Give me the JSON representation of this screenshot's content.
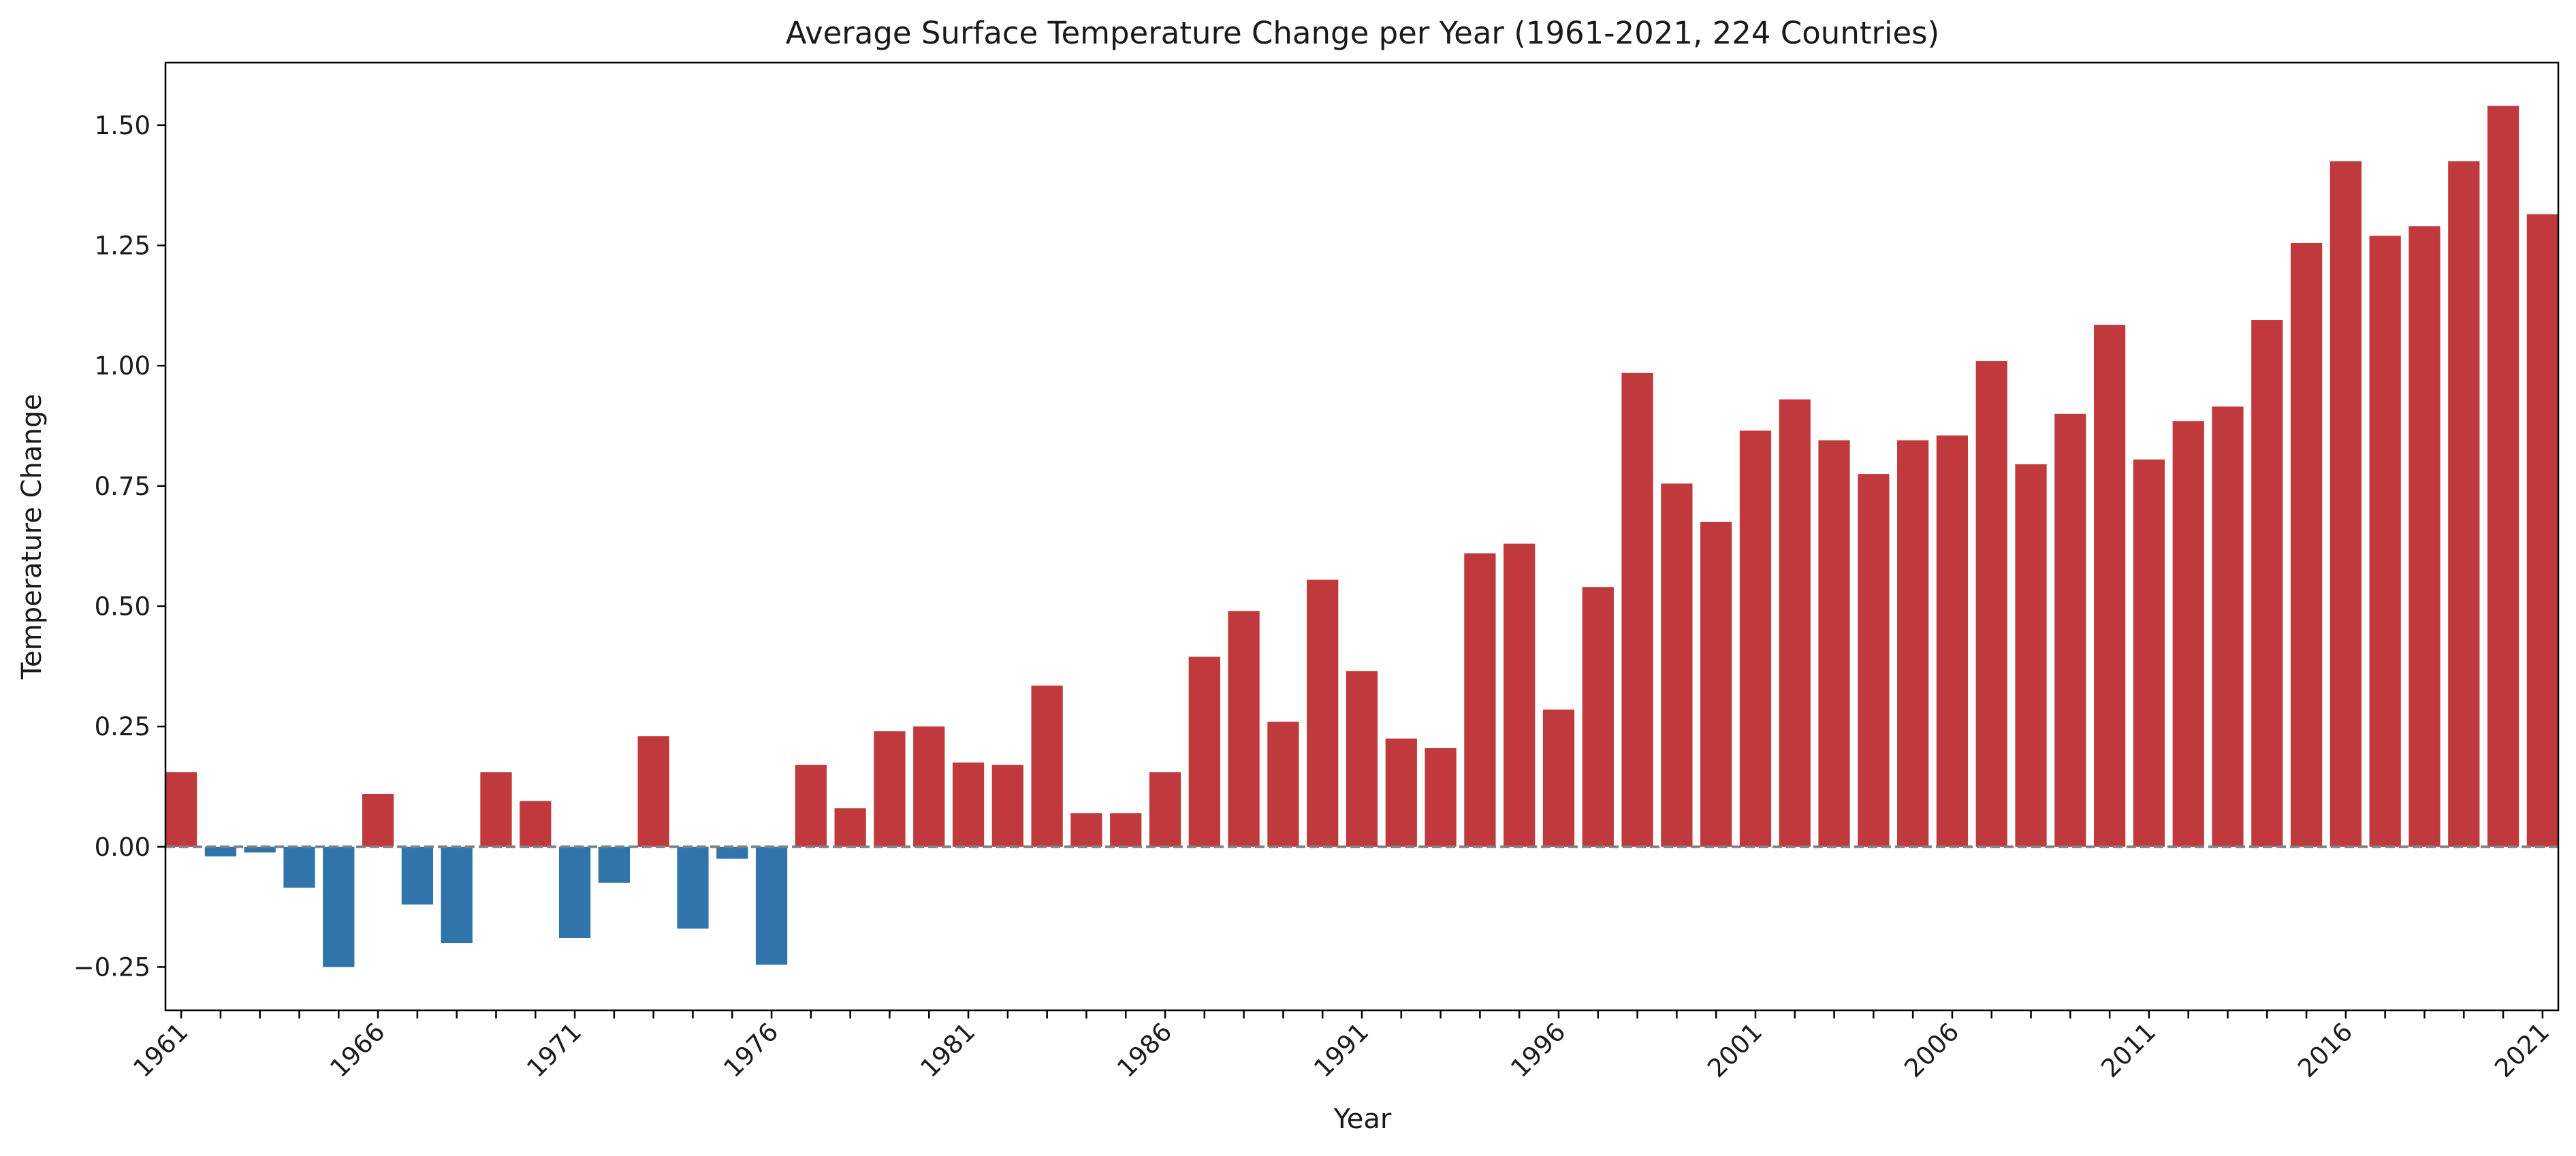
{
  "chart_data": {
    "type": "bar",
    "title": "Average Surface Temperature Change per Year (1961-2021, 224 Countries)",
    "xlabel": "Year",
    "ylabel": "Temperature Change",
    "ylim": [
      -0.34,
      1.63
    ],
    "yticks": [
      "−0.25",
      "0.00",
      "0.25",
      "0.50",
      "0.75",
      "1.00",
      "1.25",
      "1.50"
    ],
    "ytick_values": [
      -0.25,
      0.0,
      0.25,
      0.5,
      0.75,
      1.0,
      1.25,
      1.5
    ],
    "xtick_labels": [
      "1961",
      "1966",
      "1971",
      "1976",
      "1981",
      "1986",
      "1991",
      "1996",
      "2001",
      "2006",
      "2011",
      "2016",
      "2021"
    ],
    "categories": [
      "1961",
      "1962",
      "1963",
      "1964",
      "1965",
      "1966",
      "1967",
      "1968",
      "1969",
      "1970",
      "1971",
      "1972",
      "1973",
      "1974",
      "1975",
      "1976",
      "1977",
      "1978",
      "1979",
      "1980",
      "1981",
      "1982",
      "1983",
      "1984",
      "1985",
      "1986",
      "1987",
      "1988",
      "1989",
      "1990",
      "1991",
      "1992",
      "1993",
      "1994",
      "1995",
      "1996",
      "1997",
      "1998",
      "1999",
      "2000",
      "2001",
      "2002",
      "2003",
      "2004",
      "2005",
      "2006",
      "2007",
      "2008",
      "2009",
      "2010",
      "2011",
      "2012",
      "2013",
      "2014",
      "2015",
      "2016",
      "2017",
      "2018",
      "2019",
      "2020",
      "2021"
    ],
    "values": [
      0.155,
      -0.02,
      -0.012,
      -0.085,
      -0.25,
      0.11,
      -0.12,
      -0.2,
      0.155,
      0.095,
      -0.19,
      -0.075,
      0.23,
      -0.17,
      -0.025,
      -0.245,
      0.17,
      0.08,
      0.24,
      0.25,
      0.175,
      0.17,
      0.335,
      0.07,
      0.07,
      0.155,
      0.395,
      0.49,
      0.26,
      0.555,
      0.365,
      0.225,
      0.205,
      0.61,
      0.63,
      0.285,
      0.54,
      0.985,
      0.755,
      0.675,
      0.865,
      0.93,
      0.845,
      0.775,
      0.845,
      0.855,
      1.01,
      0.795,
      0.9,
      1.085,
      0.805,
      0.885,
      0.915,
      1.095,
      1.255,
      1.425,
      1.27,
      1.29,
      1.425,
      1.54,
      1.315
    ],
    "colors": {
      "positive": "#c0393d",
      "negative": "#2f74ab",
      "zero_line": "#808080"
    },
    "zero_line_style": "dashed",
    "grid": false,
    "legend": "none"
  }
}
